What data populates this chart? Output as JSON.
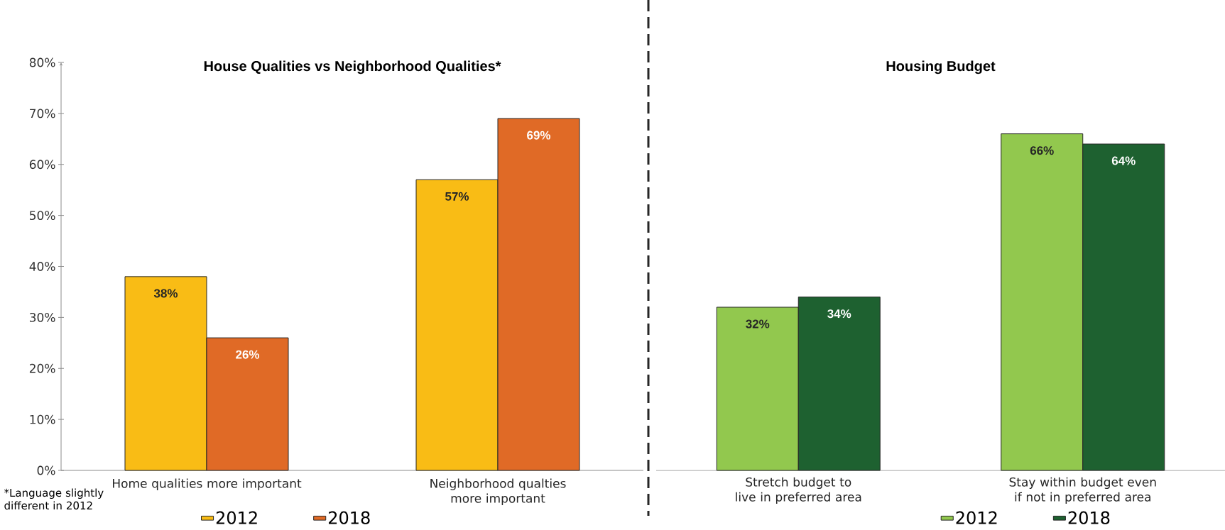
{
  "chart_data": [
    {
      "type": "bar",
      "title": "House Qualities vs Neighborhood Qualities*",
      "categories": [
        "Home qualities more important",
        "Neighborhood qualties more important"
      ],
      "series": [
        {
          "name": "2012",
          "color": "#f9bc15",
          "values": [
            38,
            57
          ],
          "value_labels": [
            "38%",
            "57%"
          ]
        },
        {
          "name": "2018",
          "color": "#e06a26",
          "values": [
            26,
            69
          ],
          "value_labels": [
            "26%",
            "69%"
          ]
        }
      ],
      "ylim": [
        0,
        80
      ],
      "yticks": [
        {
          "value": 0,
          "label": "0%"
        },
        {
          "value": 10,
          "label": "10%"
        },
        {
          "value": 20,
          "label": "20%"
        },
        {
          "value": 30,
          "label": "30%"
        },
        {
          "value": 40,
          "label": "40%"
        },
        {
          "value": 50,
          "label": "50%"
        },
        {
          "value": 60,
          "label": "60%"
        },
        {
          "value": 70,
          "label": "70%"
        },
        {
          "value": 80,
          "label": "80%"
        }
      ],
      "legend": "bottom",
      "grid": false,
      "annotations": [
        "*Language slightly different in 2012"
      ]
    },
    {
      "type": "bar",
      "title": "Housing Budget",
      "categories": [
        "Stretch budget to live in preferred area",
        "Stay within budget even if not in preferred area"
      ],
      "series": [
        {
          "name": "2012",
          "color": "#92c84e",
          "values": [
            32,
            66
          ],
          "value_labels": [
            "32%",
            "66%"
          ]
        },
        {
          "name": "2018",
          "color": "#1e6130",
          "values": [
            34,
            64
          ],
          "value_labels": [
            "34%",
            "64%"
          ]
        }
      ],
      "ylim": [
        0,
        80
      ],
      "legend": "bottom right",
      "grid": false,
      "tick_labels": "x"
    }
  ]
}
